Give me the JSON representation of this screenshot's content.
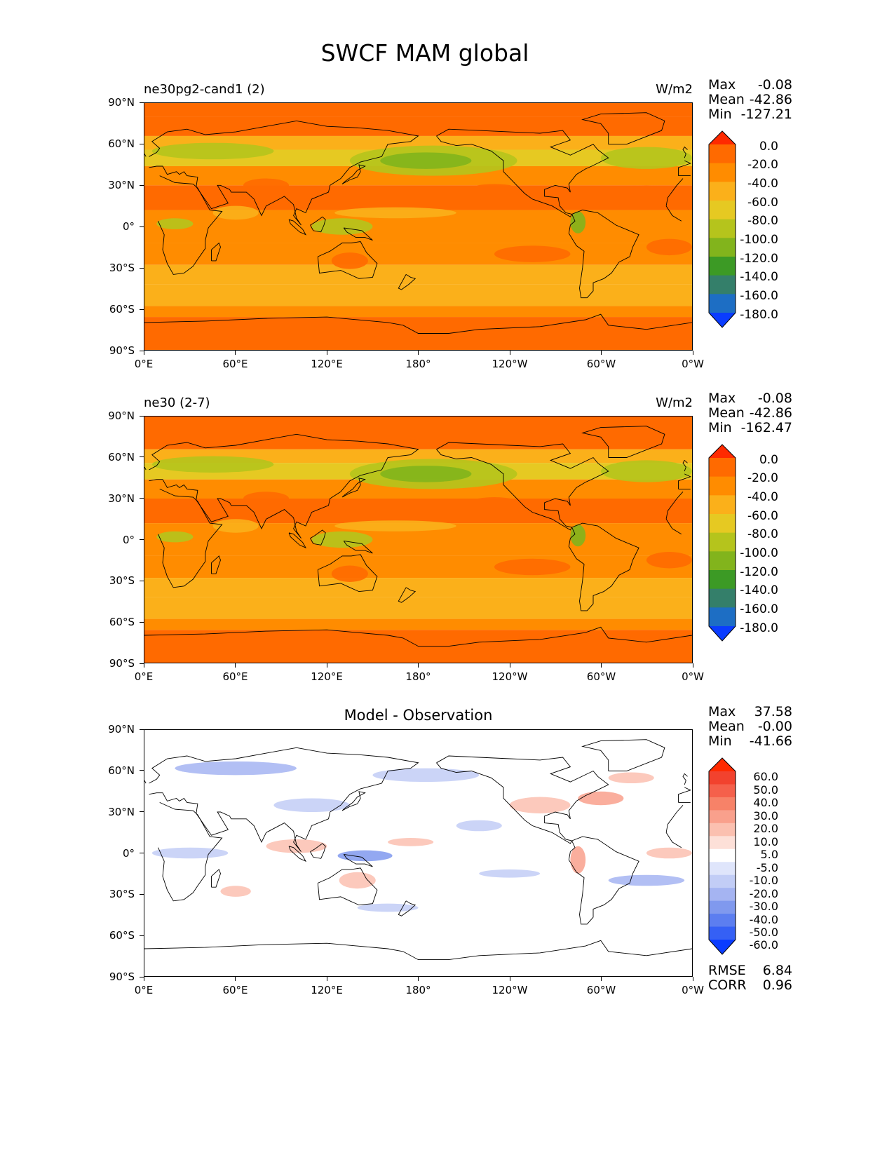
{
  "figure": {
    "title": "SWCF MAM global"
  },
  "chart_data": [
    {
      "type": "heatmap",
      "panel_title": "ne30pg2-cand1 (2)",
      "center_title": "",
      "units": "W/m2",
      "stats": {
        "max_label": "Max",
        "max": "-0.08",
        "mean_label": "Mean",
        "mean": "-42.86",
        "min_label": "Min",
        "min": "-127.21"
      },
      "x_ticks": [
        "0°E",
        "60°E",
        "120°E",
        "180°",
        "120°W",
        "60°W",
        "0°W"
      ],
      "y_ticks": [
        "90°N",
        "60°N",
        "30°N",
        "0°",
        "30°S",
        "60°S",
        "90°S"
      ],
      "xlim": [
        0,
        360
      ],
      "ylim": [
        -90,
        90
      ],
      "colorbar": {
        "levels": [
          "0.0",
          "-20.0",
          "-40.0",
          "-60.0",
          "-80.0",
          "-100.0",
          "-120.0",
          "-140.0",
          "-160.0",
          "-180.0"
        ],
        "colors": [
          "#ff2a00",
          "#ff6a00",
          "#ff8c00",
          "#fbb01a",
          "#e6c922",
          "#b5c41c",
          "#82b41c",
          "#3c9a25",
          "#347f6a",
          "#1d6ec4",
          "#0a3cff"
        ]
      }
    },
    {
      "type": "heatmap",
      "panel_title": "ne30 (2-7)",
      "center_title": "",
      "units": "W/m2",
      "stats": {
        "max_label": "Max",
        "max": "-0.08",
        "mean_label": "Mean",
        "mean": "-42.86",
        "min_label": "Min",
        "min": "-162.47"
      },
      "x_ticks": [
        "0°E",
        "60°E",
        "120°E",
        "180°",
        "120°W",
        "60°W",
        "0°W"
      ],
      "y_ticks": [
        "90°N",
        "60°N",
        "30°N",
        "0°",
        "30°S",
        "60°S",
        "90°S"
      ],
      "xlim": [
        0,
        360
      ],
      "ylim": [
        -90,
        90
      ],
      "colorbar": {
        "levels": [
          "0.0",
          "-20.0",
          "-40.0",
          "-60.0",
          "-80.0",
          "-100.0",
          "-120.0",
          "-140.0",
          "-160.0",
          "-180.0"
        ],
        "colors": [
          "#ff2a00",
          "#ff6a00",
          "#ff8c00",
          "#fbb01a",
          "#e6c922",
          "#b5c41c",
          "#82b41c",
          "#3c9a25",
          "#347f6a",
          "#1d6ec4",
          "#0a3cff"
        ]
      }
    },
    {
      "type": "heatmap",
      "panel_title": "",
      "center_title": "Model - Observation",
      "units": "",
      "stats": {
        "max_label": "Max",
        "max": "37.58",
        "mean_label": "Mean",
        "mean": "-0.00",
        "min_label": "Min",
        "min": "-41.66"
      },
      "x_ticks": [
        "0°E",
        "60°E",
        "120°E",
        "180°",
        "120°W",
        "60°W",
        "0°W"
      ],
      "y_ticks": [
        "90°N",
        "60°N",
        "30°N",
        "0°",
        "30°S",
        "60°S",
        "90°S"
      ],
      "xlim": [
        0,
        360
      ],
      "ylim": [
        -90,
        90
      ],
      "colorbar": {
        "levels": [
          "60.0",
          "50.0",
          "40.0",
          "30.0",
          "20.0",
          "10.0",
          "5.0",
          "-5.0",
          "-10.0",
          "-20.0",
          "-30.0",
          "-40.0",
          "-50.0",
          "-60.0"
        ],
        "colors": [
          "#ff2a00",
          "#f2422e",
          "#f5604b",
          "#f78268",
          "#f9a08c",
          "#fbc0b0",
          "#fde0d8",
          "#ffffff",
          "#dfe5fb",
          "#c2cdf6",
          "#a5b4f2",
          "#8099ee",
          "#5c7ef0",
          "#3560f5",
          "#0a3cff"
        ]
      },
      "rmse_label": "RMSE",
      "rmse": "6.84",
      "corr_label": "CORR",
      "corr": "0.96"
    }
  ]
}
